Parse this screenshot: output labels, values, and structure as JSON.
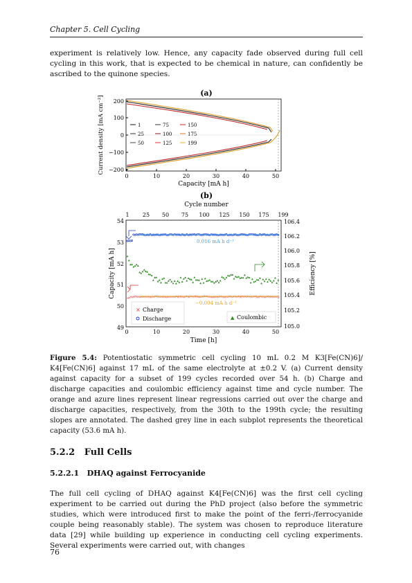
{
  "header": {
    "text": "Chapter 5.  Cell Cycling"
  },
  "intro_paragraph": "experiment is relatively low. Hence, any capacity fade observed during full cell cycling in this work, that is expected to be chemical in nature, can confidently be ascribed to the quinone species.",
  "figure": {
    "panel_a": {
      "label": "(a)",
      "xlabel": "Capacity [mA h]",
      "ylabel": "Current density [mA cm⁻²]",
      "xticks": [
        "0",
        "10",
        "20",
        "30",
        "40",
        "50"
      ],
      "yticks": [
        "200",
        "100",
        "0",
        "−100",
        "−200"
      ],
      "legend": [
        "1",
        "75",
        "150",
        "25",
        "100",
        "175",
        "50",
        "125",
        "199"
      ]
    },
    "panel_b": {
      "label": "(b)",
      "top_axis_label": "Cycle number",
      "top_ticks": [
        "1",
        "25",
        "50",
        "75",
        "100",
        "125",
        "150",
        "175",
        "199"
      ],
      "xlabel": "Time [h]",
      "ylabel_left": "Capacity [mA h]",
      "ylabel_right": "Efficiency [%]",
      "xticks": [
        "0",
        "10",
        "20",
        "30",
        "40",
        "50"
      ],
      "yticks_left": [
        "54",
        "53",
        "52",
        "51",
        "50",
        "49"
      ],
      "yticks_right": [
        "106.4",
        "106.2",
        "106.0",
        "105.8",
        "105.6",
        "105.4",
        "105.2",
        "105.0"
      ],
      "annotation_discharge": "0.016 mA h d⁻¹",
      "annotation_charge": "−0.004 mA h d⁻¹",
      "legend_charge": "Charge",
      "legend_discharge": "Discharge",
      "legend_coulombic": "Coulombic"
    },
    "colors": {
      "discharge": "#1f3fd6",
      "charge": "#e03030",
      "coulombic": "#2e8b22",
      "orange_fit": "#f0a020",
      "azure_fit": "#4aa0e6"
    }
  },
  "caption": {
    "label": "Figure 5.4:",
    "text": "Potentiostatic symmetric cell cycling 10 mL 0.2 M K3[Fe(CN)6]/ K4[Fe(CN)6] against 17 mL of the same electrolyte at ±0.2 V. (a) Current density against capacity for a subset of 199 cycles recorded over 54 h. (b) Charge and discharge capacities and coulombic efficiency against time and cycle number. The orange and azure lines represent linear regressions carried out over the charge and discharge capacities, respectively, from the 30th to the 199th cycle; the resulting slopes are annotated. The dashed grey line in each subplot represents the theoretical capacity (53.6 mA h)."
  },
  "section": {
    "number": "5.2.2",
    "title": "Full Cells"
  },
  "subsection": {
    "number": "5.2.2.1",
    "title": "DHAQ against Ferrocyanide"
  },
  "body_paragraph": "The full cell cycling of DHAQ against K4[Fe(CN)6] was the first cell cycling experiment to be carried out during the PhD project (also before the symmetric studies, which were introduced first to make the point of the ferri-/ferrocyanide couple being reasonably stable). The system was chosen to reproduce literature data [29] while building up experience in conducting cell cycling experiments. Several experiments were carried out, with changes",
  "page_number": "76"
}
